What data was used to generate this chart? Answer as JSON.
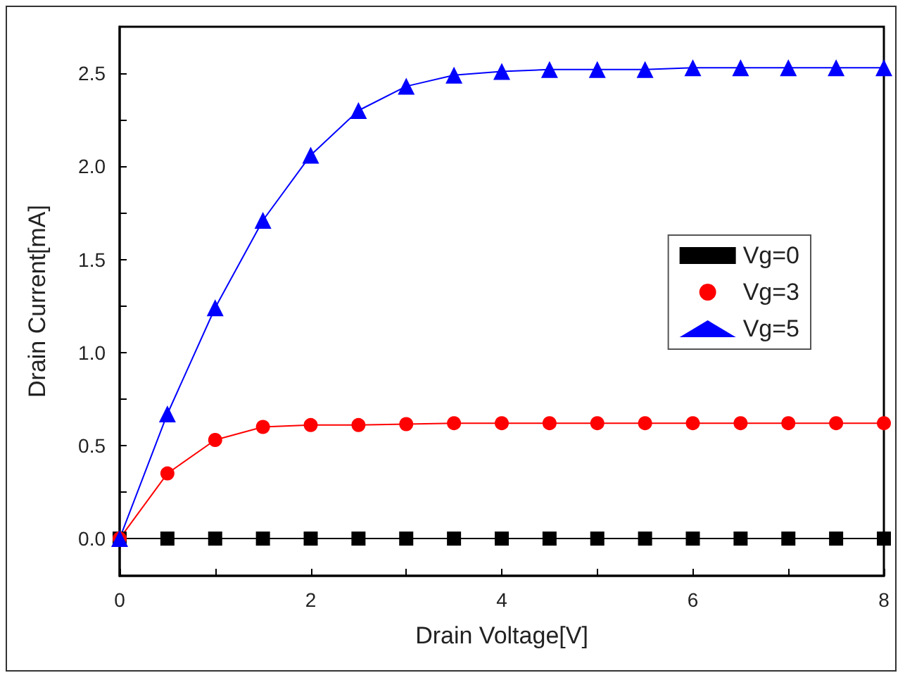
{
  "chart_data": {
    "type": "line",
    "xlabel": "Drain Voltage[V]",
    "ylabel": "Drain Current[mA]",
    "x": [
      0,
      0.5,
      1,
      1.5,
      2,
      2.5,
      3,
      3.5,
      4,
      4.5,
      5,
      5.5,
      6,
      6.5,
      7,
      7.5,
      8
    ],
    "series": [
      {
        "name": "Vg=0",
        "color": "#000000",
        "marker": "square",
        "values": [
          0,
          0,
          0,
          0,
          0,
          0,
          0,
          0,
          0,
          0,
          0,
          0,
          0,
          0,
          0,
          0,
          0
        ]
      },
      {
        "name": "Vg=3",
        "color": "#ff0000",
        "marker": "circle",
        "values": [
          0,
          0.35,
          0.53,
          0.6,
          0.61,
          0.61,
          0.615,
          0.62,
          0.62,
          0.62,
          0.62,
          0.62,
          0.62,
          0.62,
          0.62,
          0.62,
          0.62
        ]
      },
      {
        "name": "Vg=5",
        "color": "#0000ff",
        "marker": "triangle",
        "values": [
          0,
          0.67,
          1.24,
          1.71,
          2.06,
          2.3,
          2.43,
          2.49,
          2.51,
          2.52,
          2.52,
          2.52,
          2.53,
          2.53,
          2.53,
          2.53,
          2.53
        ]
      }
    ],
    "xlim": [
      0,
      8
    ],
    "xticks": [
      0,
      {
        "value": 1,
        "label": null
      },
      2,
      {
        "value": 3,
        "label": null
      },
      4,
      {
        "value": 5,
        "label": null
      },
      6,
      {
        "value": 7,
        "label": null
      },
      8
    ],
    "ylim": [
      -0.2,
      2.75
    ],
    "yticks": [
      {
        "value": 0,
        "label": "0.0"
      },
      {
        "value": 0.25,
        "label": null
      },
      {
        "value": 0.5,
        "label": "0.5"
      },
      {
        "value": 0.75,
        "label": null
      },
      {
        "value": 1,
        "label": "1.0"
      },
      {
        "value": 1.25,
        "label": null
      },
      {
        "value": 1.5,
        "label": "1.5"
      },
      {
        "value": 1.75,
        "label": null
      },
      {
        "value": 2,
        "label": "2.0"
      },
      {
        "value": 2.25,
        "label": null
      },
      {
        "value": 2.5,
        "label": "2.5"
      }
    ],
    "grid": false,
    "legend": "right",
    "line_style": "solid"
  }
}
